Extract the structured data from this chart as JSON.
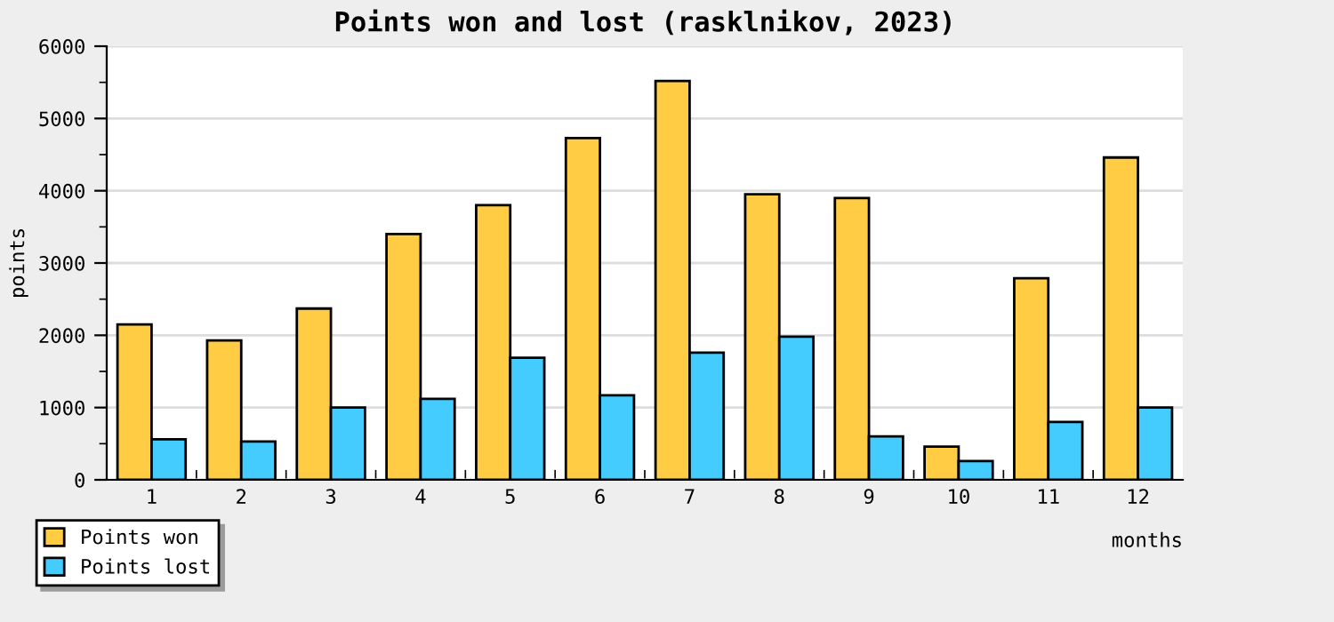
{
  "chart_data": {
    "type": "bar",
    "title": "Points won and lost (rasklnikov, 2023)",
    "xlabel": "months",
    "ylabel": "points",
    "categories": [
      "1",
      "2",
      "3",
      "4",
      "5",
      "6",
      "7",
      "8",
      "9",
      "10",
      "11",
      "12"
    ],
    "series": [
      {
        "name": "Points won",
        "color": "#ffcc44",
        "values": [
          2150,
          1930,
          2370,
          3400,
          3800,
          4730,
          5520,
          3950,
          3900,
          460,
          2790,
          4460
        ]
      },
      {
        "name": "Points lost",
        "color": "#44ccff",
        "values": [
          560,
          530,
          1000,
          1120,
          1690,
          1170,
          1760,
          1980,
          600,
          260,
          800,
          1000
        ]
      }
    ],
    "ylim": [
      0,
      6000
    ],
    "yticks": [
      0,
      {
        "value": 500,
        "label": null
      },
      1000,
      {
        "value": 1500,
        "label": null
      },
      2000,
      {
        "value": 2500,
        "label": null
      },
      3000,
      {
        "value": 3500,
        "label": null
      },
      4000,
      {
        "value": 4500,
        "label": null
      },
      5000,
      {
        "value": 5500,
        "label": null
      },
      6000
    ],
    "grid": "y",
    "legend": "bottom left"
  }
}
